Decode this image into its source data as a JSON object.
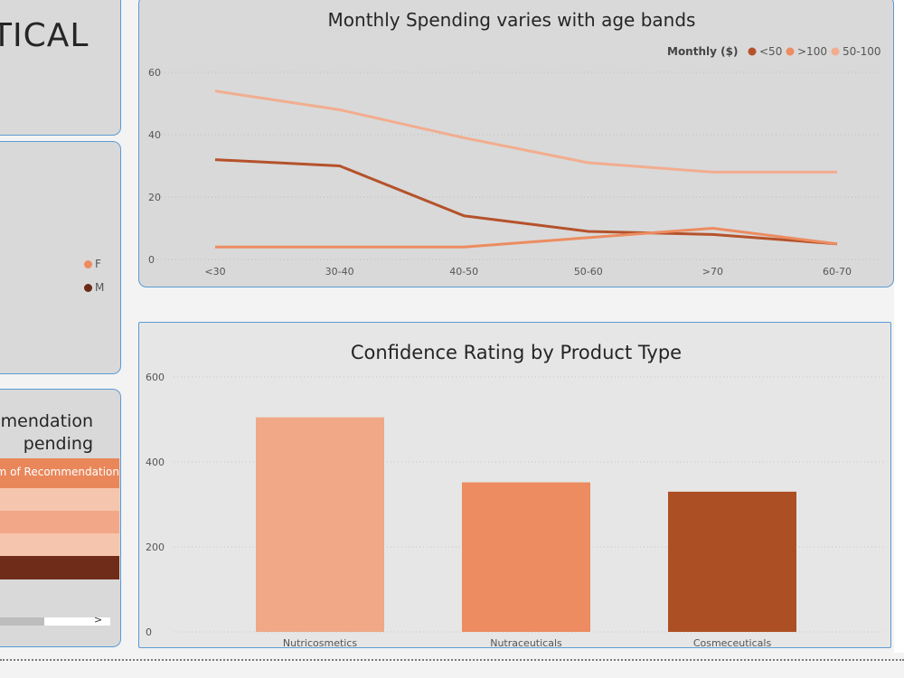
{
  "left_panel": {
    "title_fragment": "TICAL",
    "gender_legend": [
      {
        "label": "F",
        "color": "#ef8b5f"
      },
      {
        "label": "M",
        "color": "#6b2a16"
      }
    ],
    "table": {
      "title_line1": "mendation",
      "title_line2": "pending",
      "header": "m of Recommendation",
      "row_colors": [
        "#f6c5ad",
        "#f2a888",
        "#f6c5ad",
        "#6e2c19"
      ],
      "scroll_arrow": ">"
    }
  },
  "chart_data": [
    {
      "type": "line",
      "title": "Monthly Spending varies with age bands",
      "legend_title": "Monthly  ($)",
      "categories": [
        "<30",
        "30-40",
        "40-50",
        "50-60",
        ">70",
        "60-70"
      ],
      "ylim": [
        0,
        60
      ],
      "yticks": [
        0,
        20,
        40,
        60
      ],
      "grid": true,
      "legend_position": "top-right",
      "series": [
        {
          "name": "<50",
          "color": "#b5522b",
          "values": [
            32,
            30,
            14,
            9,
            8,
            5
          ]
        },
        {
          "name": ">100",
          "color": "#ec8c60",
          "values": [
            4,
            4,
            4,
            7,
            10,
            5
          ]
        },
        {
          "name": "50-100",
          "color": "#f2ad8f",
          "values": [
            54,
            48,
            39,
            31,
            28,
            28
          ]
        }
      ]
    },
    {
      "type": "bar",
      "title": "Confidence Rating by Product Type",
      "categories": [
        "Nutricosmetics",
        "Nutraceuticals",
        "Cosmeceuticals"
      ],
      "values": [
        505,
        352,
        330
      ],
      "colors": [
        "#f0a887",
        "#ec8c60",
        "#ad4f24"
      ],
      "ylim": [
        0,
        600
      ],
      "yticks": [
        0,
        200,
        400,
        600
      ],
      "grid": true
    }
  ]
}
